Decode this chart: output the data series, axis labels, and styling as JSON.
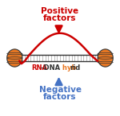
{
  "bg_color": "#ffffff",
  "title_top_line1": "Positive",
  "title_top_line2": "factors",
  "title_bottom_line1": "Negative",
  "title_bottom_line2": "factors",
  "text_top_color": "#cc0000",
  "text_bottom_color": "#4472c4",
  "top_arrow_color": "#cc0000",
  "bottom_arrow_color": "#4472c4",
  "nucleosome_color": "#e87722",
  "nucleosome_stripe_color": "#333333",
  "dna_line_color": "#333333",
  "rna_loop_color": "#cc0000",
  "tick_color": "#999999",
  "label_rna_color": "#cc0000",
  "label_dna_color": "#333333",
  "label_hyb_color": "#e87722",
  "label_rid_color": "#333333",
  "figsize": [
    1.5,
    1.46
  ],
  "dpi": 100
}
